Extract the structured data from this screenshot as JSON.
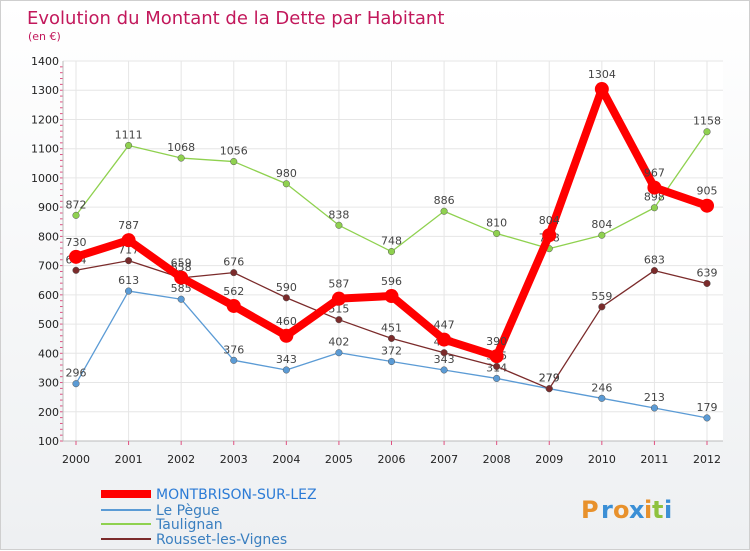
{
  "chart_data": {
    "type": "line",
    "title": "Evolution du Montant de la Dette par Habitant",
    "subtitle": "(en €)",
    "categories": [
      "2000",
      "2001",
      "2002",
      "2003",
      "2004",
      "2005",
      "2006",
      "2007",
      "2008",
      "2009",
      "2010",
      "2011",
      "2012"
    ],
    "ylim": [
      100,
      1400
    ],
    "yticks": [
      100,
      200,
      300,
      400,
      500,
      600,
      700,
      800,
      900,
      1000,
      1100,
      1200,
      1300,
      1400
    ],
    "grid": true,
    "legend_position": "bottom-left",
    "series": [
      {
        "name": "MONTBRISON-SUR-LEZ",
        "color": "#ff0000",
        "values": [
          730,
          787,
          659,
          562,
          460,
          587,
          596,
          447,
          390,
          804,
          1304,
          967,
          905
        ],
        "labels": [
          "730",
          "787",
          "659",
          "562",
          "460",
          "587",
          "596",
          "447",
          "390",
          "804",
          "1304",
          "967",
          "905"
        ]
      },
      {
        "name": "Le Pègue",
        "color": "#5b9bd5",
        "values": [
          296,
          613,
          585,
          376,
          343,
          402,
          372,
          343,
          314,
          279,
          246,
          213,
          179
        ],
        "labels": [
          "296",
          "613",
          "585",
          "376",
          "343",
          "402",
          "372",
          "343",
          "314",
          "279",
          "246",
          "213",
          "179"
        ]
      },
      {
        "name": "Taulignan",
        "color": "#8fd14f",
        "values": [
          872,
          1111,
          1068,
          1056,
          980,
          838,
          748,
          886,
          810,
          758,
          804,
          898,
          1158
        ],
        "labels": [
          "872",
          "1111",
          "1068",
          "1056",
          "980",
          "838",
          "748",
          "886",
          "810",
          "758",
          "804",
          "898",
          "1158"
        ]
      },
      {
        "name": "Rousset-les-Vignes",
        "color": "#7b2b2b",
        "values": [
          684,
          717,
          658,
          676,
          590,
          515,
          451,
          402,
          355,
          279,
          559,
          683,
          639
        ],
        "labels": [
          "684",
          "717",
          "658",
          "676",
          "590",
          "515",
          "451",
          "402",
          "355",
          "279",
          "559",
          "683",
          "639"
        ]
      }
    ]
  },
  "logo": {
    "text": "Proxiti",
    "letters": [
      "P",
      "r",
      "o",
      "x",
      "i",
      "t",
      "i"
    ],
    "colors": [
      "#e8912c",
      "#3b8fd6",
      "#e8912c",
      "#3b8fd6",
      "#e8912c",
      "#8fc23f",
      "#3b8fd6"
    ]
  }
}
